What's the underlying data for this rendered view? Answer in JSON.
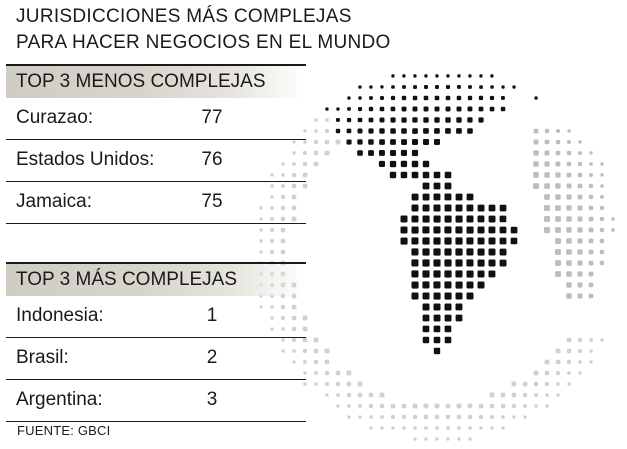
{
  "title_lines": [
    "JURISDICCIONES MÁS COMPLEJAS",
    "PARA HACER NEGOCIOS EN EL MUNDO"
  ],
  "sections": [
    {
      "header": "TOP 3 MENOS COMPLEJAS",
      "rows": [
        {
          "name": "Curazao:",
          "value": "77"
        },
        {
          "name": "Estados Unidos:",
          "value": "76"
        },
        {
          "name": "Jamaica:",
          "value": "75"
        }
      ]
    },
    {
      "header": "TOP 3 MÁS COMPLEJAS",
      "rows": [
        {
          "name": "Indonesia:",
          "value": "1"
        },
        {
          "name": "Brasil:",
          "value": "2"
        },
        {
          "name": "Argentina:",
          "value": "3"
        }
      ]
    }
  ],
  "source": "FUENTE: GBCI",
  "colors": {
    "header_bg": "#d6d4cb",
    "land_dark": "#111111",
    "land_light": "#bdbdbd",
    "text": "#1a1a1a"
  },
  "globe_icon": "dotted-world-globe-americas"
}
